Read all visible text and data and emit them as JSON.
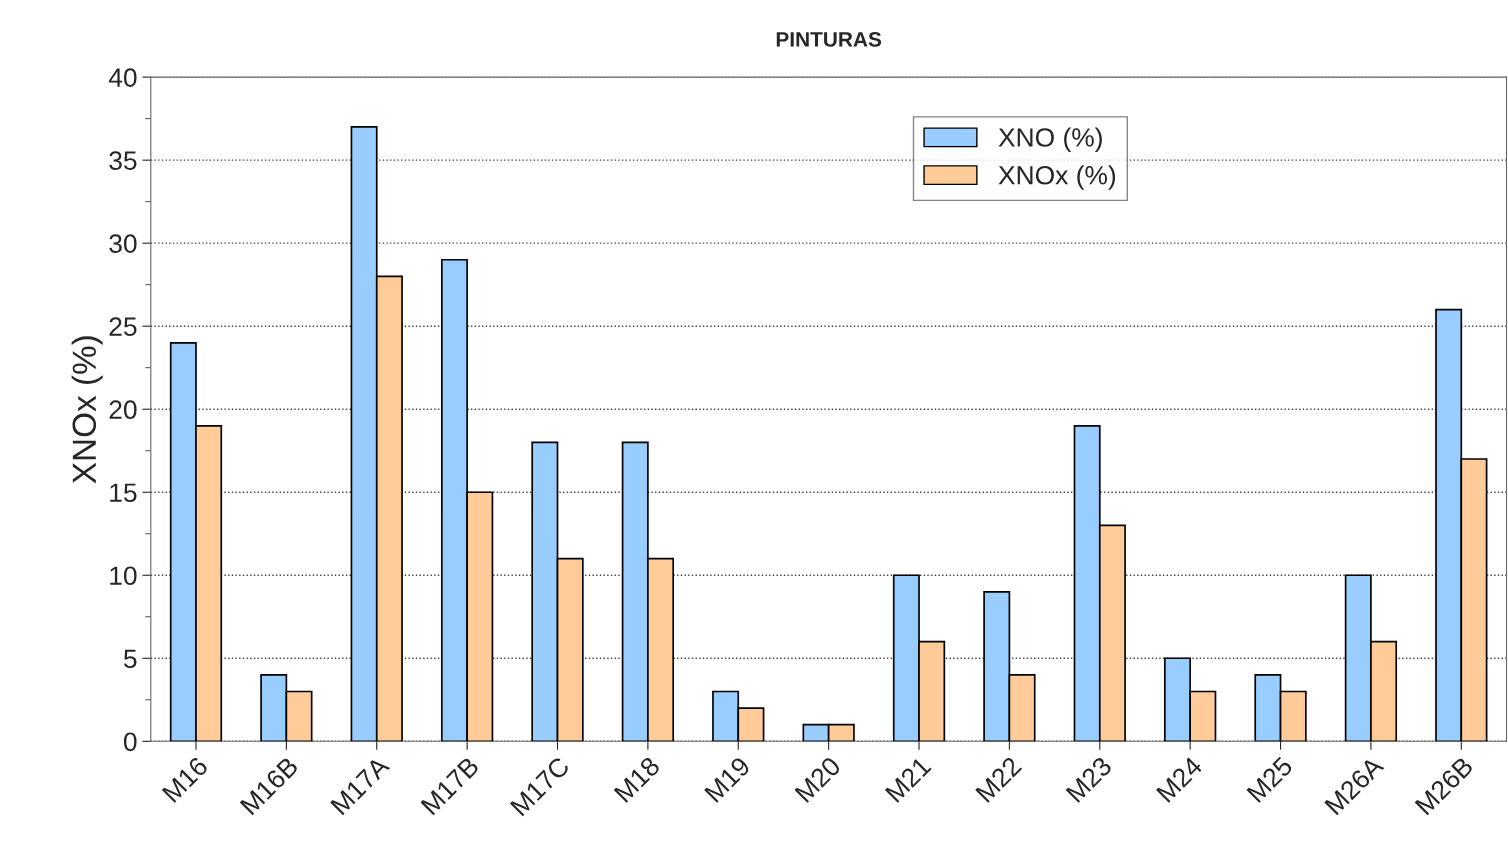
{
  "chart_data": {
    "type": "bar",
    "title": "PINTURAS",
    "ylabel": "XNOx (%)",
    "categories": [
      "M16",
      "M16B",
      "M17A",
      "M17B",
      "M17C",
      "M18",
      "M19",
      "M20",
      "M21",
      "M22",
      "M23",
      "M24",
      "M25",
      "M26A",
      "M26B"
    ],
    "series": [
      {
        "name": "XNO (%)",
        "color": "#99ccff",
        "values": [
          24,
          4,
          37,
          29,
          18,
          18,
          3,
          1,
          10,
          9,
          19,
          5,
          4,
          10,
          26
        ]
      },
      {
        "name": "XNOx (%)",
        "color": "#ffcc99",
        "values": [
          19,
          3,
          28,
          15,
          11,
          11,
          2,
          1,
          6,
          4,
          13,
          3,
          3,
          6,
          17
        ]
      }
    ],
    "ylim": [
      0,
      40
    ],
    "yticks": [
      0,
      5,
      10,
      15,
      20,
      25,
      30,
      35,
      40
    ],
    "grid": "y",
    "legend": "top right"
  }
}
